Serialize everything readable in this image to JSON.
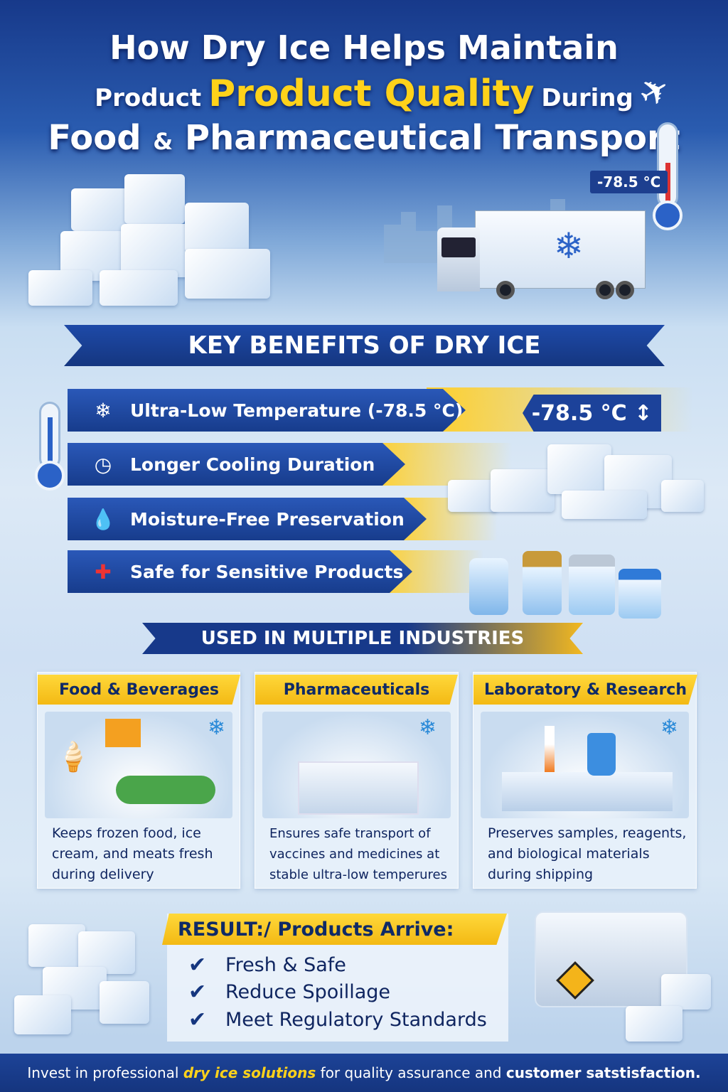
{
  "title": {
    "line1": "How Dry Ice Helps Maintain",
    "line2_prefix": "Product",
    "line2_highlight": "Product Quality",
    "line2_suffix": "During",
    "line3_a": "Food",
    "line3_amp": "&",
    "line3_b": "Pharmaceutical Transport"
  },
  "hero": {
    "temperature_label": "-78.5 °C"
  },
  "benefits": {
    "heading": "KEY BENEFITS OF DRY ICE",
    "items": [
      {
        "label": "Ultra-Low Temperature (-78.5 °C)",
        "icon": "snowflake-icon"
      },
      {
        "label": "Longer Cooling Duration",
        "icon": "timer-icon"
      },
      {
        "label": "Moisture-Free Preservation",
        "icon": "water-drop-icon"
      },
      {
        "label": "Safe for Sensitive Products",
        "icon": "shield-cross-icon"
      }
    ],
    "temp_badge": "-78.5 °C ↕"
  },
  "industries": {
    "heading": "USED IN MULTIPLE INDUSTRIES",
    "cards": [
      {
        "title": "Food & Beverages",
        "text": "Keeps frozen food, ice cream, and meats fresh during delivery"
      },
      {
        "title": "Pharmaceuticals",
        "text": "Ensures safe transport of vaccines and medicines at stable ultra-low temperures"
      },
      {
        "title": "Laboratory & Research",
        "text": "Preserves samples, reagents, and biological materials during shipping"
      }
    ]
  },
  "result": {
    "heading": "RESULT:/ Products Arrive:",
    "items": [
      "Fresh & Safe",
      "Reduce Spoillage",
      "Meet Regulatory Standards"
    ]
  },
  "footer": {
    "part1": "Invest in professional",
    "highlight": "dry ice solutions",
    "part2": "for quality assurance and",
    "bold": "customer satstisfaction."
  },
  "colors": {
    "navy": "#173c8c",
    "yellow": "#ffd21a",
    "text_dark": "#0f2560"
  }
}
